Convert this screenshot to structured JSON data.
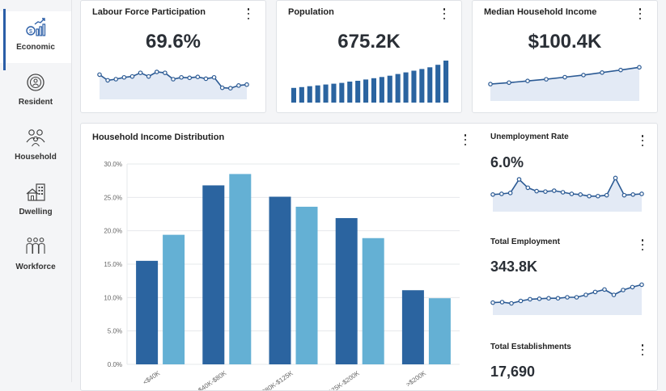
{
  "sidebar": {
    "items": [
      {
        "label": "Economic",
        "icon": "growth-chart-icon",
        "active": true
      },
      {
        "label": "Resident",
        "icon": "person-circle-icon",
        "active": false
      },
      {
        "label": "Household",
        "icon": "family-icon",
        "active": false
      },
      {
        "label": "Dwelling",
        "icon": "house-building-icon",
        "active": false
      },
      {
        "label": "Workforce",
        "icon": "workers-icon",
        "active": false
      }
    ]
  },
  "cards": {
    "labour": {
      "title": "Labour Force Participation",
      "value": "69.6%"
    },
    "population": {
      "title": "Population",
      "value": "675.2K"
    },
    "income": {
      "title": "Median Household Income",
      "value": "$100.4K"
    },
    "distribution": {
      "title": "Household Income Distribution"
    },
    "unemployment": {
      "title": "Unemployment Rate",
      "value": "6.0%"
    },
    "employment": {
      "title": "Total Employment",
      "value": "343.8K"
    },
    "establishments": {
      "title": "Total Establishments",
      "value": "17,690"
    }
  },
  "sparklines": {
    "labour": [
      0.7,
      0.45,
      0.5,
      0.58,
      0.62,
      0.78,
      0.62,
      0.82,
      0.78,
      0.5,
      0.58,
      0.56,
      0.6,
      0.52,
      0.58,
      0.12,
      0.1,
      0.22,
      0.26
    ],
    "population": [
      0.35,
      0.37,
      0.39,
      0.41,
      0.43,
      0.45,
      0.47,
      0.5,
      0.52,
      0.55,
      0.58,
      0.61,
      0.64,
      0.68,
      0.72,
      0.76,
      0.8,
      0.84,
      0.9,
      1.0
    ],
    "income": [
      0.15,
      0.22,
      0.3,
      0.38,
      0.48,
      0.58,
      0.7,
      0.82,
      0.95
    ],
    "unemployment": [
      0.15,
      0.18,
      0.22,
      0.82,
      0.45,
      0.3,
      0.28,
      0.32,
      0.25,
      0.18,
      0.15,
      0.08,
      0.08,
      0.12,
      0.88,
      0.12,
      0.15,
      0.18
    ],
    "employment": [
      0.08,
      0.1,
      0.05,
      0.15,
      0.22,
      0.24,
      0.26,
      0.26,
      0.3,
      0.3,
      0.4,
      0.52,
      0.62,
      0.4,
      0.6,
      0.72,
      0.82
    ],
    "establishments": []
  },
  "chart_data": {
    "type": "bar",
    "title": "Household Income Distribution",
    "categories": [
      "<$40K",
      "$40K-$80K",
      "$80K-$125K",
      "$125K-$200K",
      ">$200K"
    ],
    "series": [
      {
        "values": [
          15.5,
          26.8,
          25.1,
          21.9,
          11.1
        ]
      },
      {
        "values": [
          19.4,
          28.5,
          23.6,
          18.9,
          9.9
        ]
      }
    ],
    "yticks": [
      0,
      5,
      10,
      15,
      20,
      25,
      30
    ],
    "ytick_labels": [
      "0.0%",
      "5.0%",
      "10.0%",
      "15.0%",
      "20.0%",
      "25.0%",
      "30.0%"
    ],
    "ylim": [
      0,
      30
    ],
    "grid": true,
    "colors": [
      "#2b64a0",
      "#64b0d4"
    ]
  },
  "colors": {
    "accent": "#2b5ea7",
    "line": "#2b5a94",
    "area": "#e3eaf5",
    "bar_population": "#2b64a0"
  }
}
